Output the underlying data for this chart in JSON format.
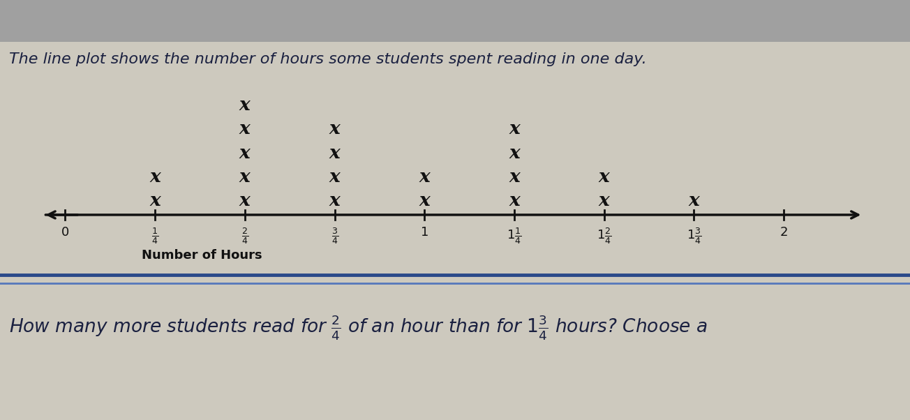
{
  "title": "The line plot shows the number of hours some students spent reading in one day.",
  "xlabel": "Number of Hours",
  "background_color": "#cdc9be",
  "top_bar_color": "#b0b0b0",
  "separator_color_dark": "#2a4a8a",
  "separator_color_light": "#5577bb",
  "bottom_bg_color": "#cdc9be",
  "axis_line_color": "#111111",
  "text_color": "#1a2040",
  "marker_color": "#111111",
  "tick_positions": [
    0,
    0.25,
    0.5,
    0.75,
    1.0,
    1.25,
    1.5,
    1.75,
    2.0
  ],
  "data_positions": [
    0.25,
    0.5,
    0.75,
    1.0,
    1.25,
    1.5,
    1.75
  ],
  "data_counts": [
    2,
    5,
    4,
    2,
    4,
    2,
    1
  ]
}
